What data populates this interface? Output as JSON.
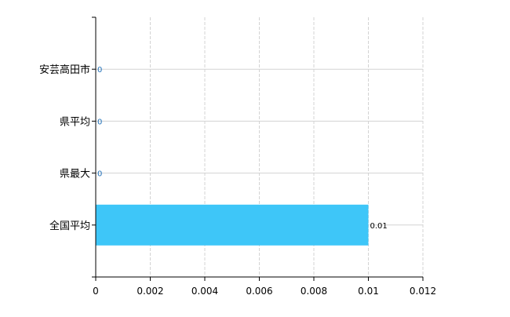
{
  "chart_data": {
    "type": "bar",
    "orientation": "horizontal",
    "categories": [
      "安芸高田市",
      "県平均",
      "県最大",
      "全国平均"
    ],
    "values": [
      0,
      0,
      0,
      0.01
    ],
    "data_labels": [
      "0",
      "0",
      "0",
      "0.01"
    ],
    "title": "",
    "xlabel": "",
    "ylabel": "",
    "xlim": [
      0,
      0.012
    ],
    "xticks": [
      0,
      0.002,
      0.004,
      0.006,
      0.008,
      0.01,
      0.012
    ],
    "xtick_labels": [
      "0",
      "0.002",
      "0.004",
      "0.006",
      "0.008",
      "0.01",
      "0.012"
    ],
    "grid": true,
    "legend": "none",
    "colors": {
      "bar": "#3EC6F8",
      "grid": "#D3D3D3",
      "zero_label": "#1E6FB8",
      "axis": "#000000"
    }
  }
}
